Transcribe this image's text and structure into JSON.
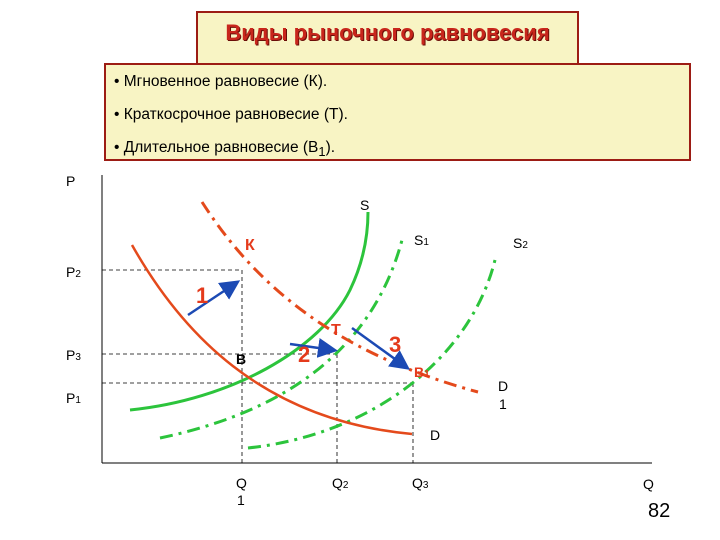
{
  "title": "Виды рыночного равновесия",
  "bullets": [
    {
      "marker": "•",
      "text": "Мгновенное равновесие (К)."
    },
    {
      "marker": "•",
      "text": "Краткосрочное равновесие (Т)."
    },
    {
      "marker": "•",
      "text": "Длительное равновесие (В",
      "sub": "1",
      "tail": ")."
    }
  ],
  "axes": {
    "y_label": "P",
    "x_label": "Q"
  },
  "price_labels": {
    "p2": {
      "main": "P",
      "sub": "2"
    },
    "p3": {
      "main": "P",
      "sub": "3"
    },
    "p1": {
      "main": "P",
      "sub": "1"
    }
  },
  "quantity_labels": {
    "q1": {
      "main": "Q",
      "sub": "1"
    },
    "q2": {
      "main": "Q",
      "sub": "2"
    },
    "q3": {
      "main": "Q",
      "sub": "3"
    }
  },
  "curve_labels": {
    "s": "S",
    "s1": {
      "main": "S",
      "sub": "1"
    },
    "s2": {
      "main": "S",
      "sub": "2"
    },
    "d": "D",
    "d1": {
      "main": "D",
      "sub": "1"
    }
  },
  "points": {
    "k": "К",
    "t": "Т",
    "b": "В",
    "b1": {
      "main": "В",
      "sub": "1"
    }
  },
  "steps": [
    "1",
    "2",
    "3"
  ],
  "page_number": "82",
  "colors": {
    "supply": "#2cc43c",
    "demand": "#e44a1c",
    "arrow": "#1c4ab4",
    "label": "#e43a1c",
    "box_bg": "#f8f4c4",
    "box_border": "#9c1c14"
  }
}
